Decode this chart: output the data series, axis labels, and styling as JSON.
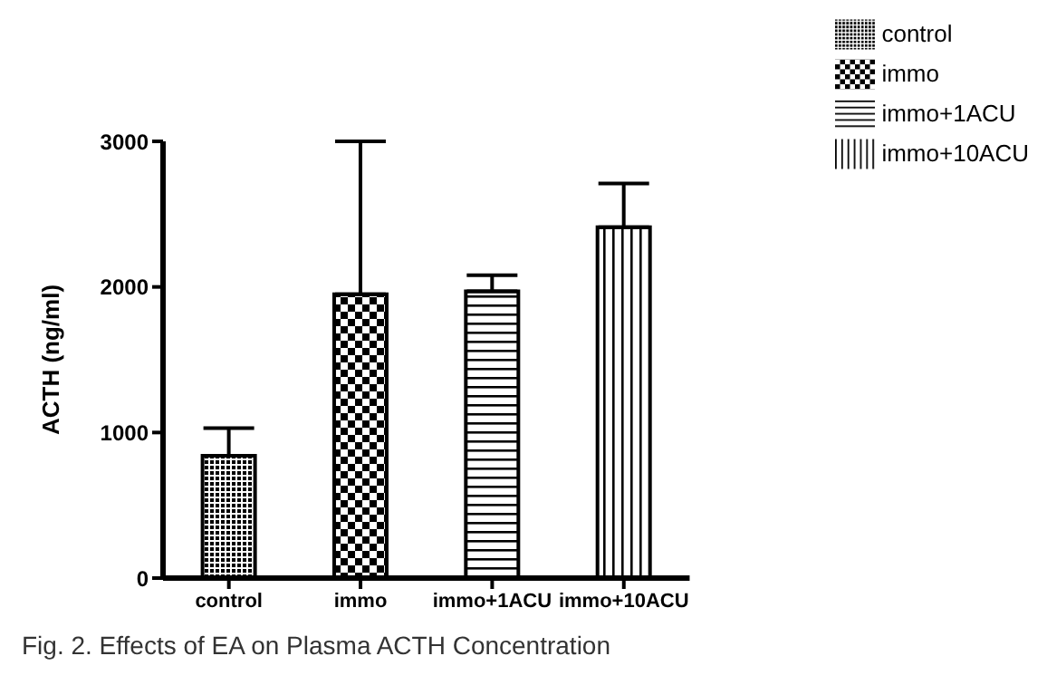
{
  "chart_data": {
    "type": "bar",
    "ylabel": "ACTH (ng/ml)",
    "categories": [
      "control",
      "immo",
      "immo+1ACU",
      "immo+10ACU"
    ],
    "series": [
      {
        "name": "control",
        "color": "#000000",
        "values": [
          840,
          null,
          null,
          null
        ],
        "errors": [
          190,
          null,
          null,
          null
        ]
      },
      {
        "name": "immo",
        "color": "#000000",
        "values": [
          null,
          1950,
          null,
          null
        ],
        "errors": [
          null,
          1050,
          null,
          null
        ]
      },
      {
        "name": "immo+1ACU",
        "color": "#000000",
        "values": [
          null,
          null,
          1970,
          null
        ],
        "errors": [
          null,
          null,
          110,
          null
        ]
      },
      {
        "name": "immo+10ACU",
        "color": "#000000",
        "values": [
          null,
          null,
          null,
          2410
        ],
        "errors": [
          null,
          null,
          null,
          300
        ]
      }
    ],
    "stacked": true,
    "ylim": [
      0,
      3000
    ],
    "yticks": [
      0,
      1000,
      2000,
      3000
    ],
    "legend": "top right",
    "grid": false,
    "annotations": [
      "Fig. 2. Effects of EA on Plasma ACTH Concentration"
    ]
  }
}
